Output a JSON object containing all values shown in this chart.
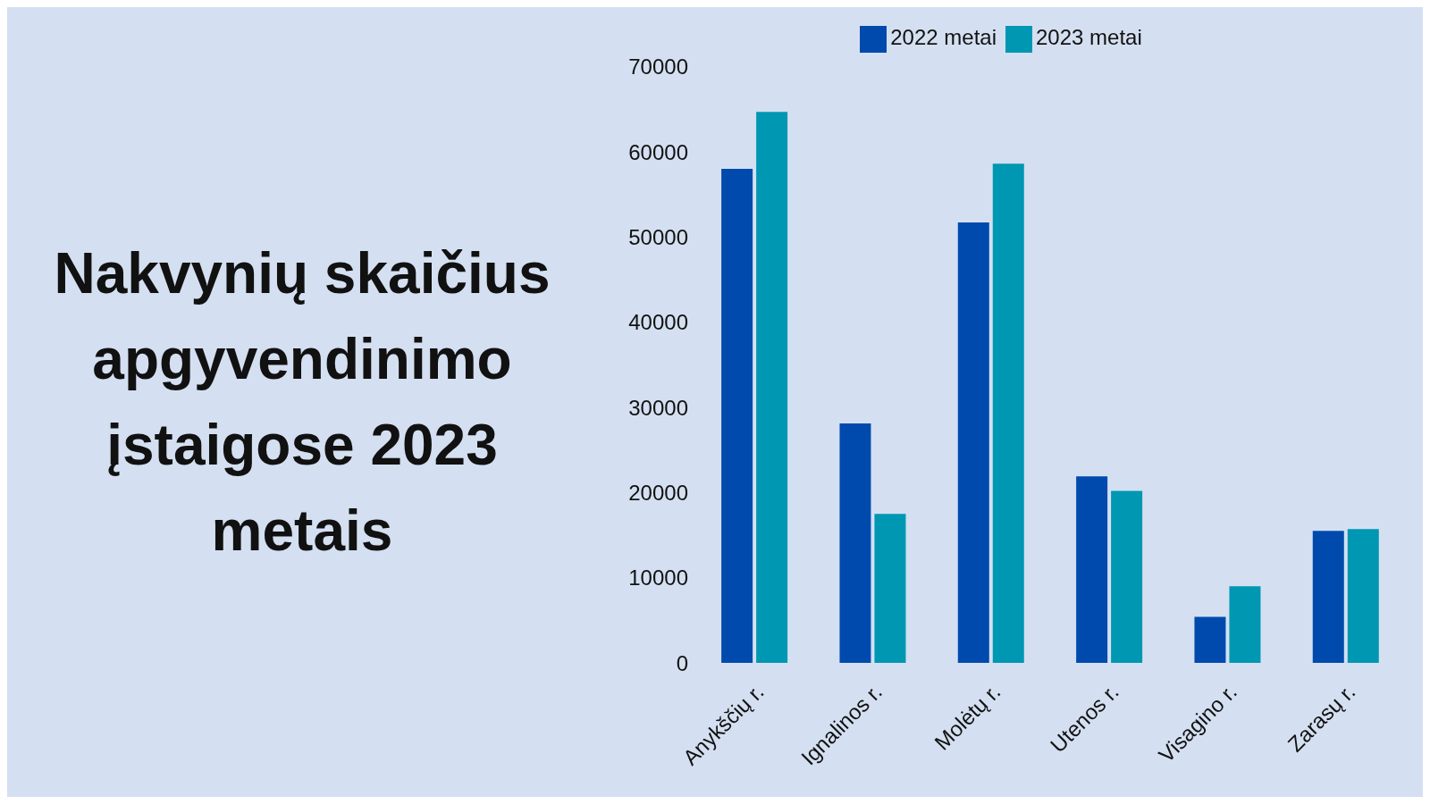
{
  "chart_data": {
    "type": "bar",
    "title": "Nakvynių skaičius apgyvendinimo įstaigose 2023 metais",
    "categories": [
      "Anykščių r.",
      "Ignalinos r.",
      "Molėtų r.",
      "Utenos r.",
      "Visagino r.",
      "Zarasų r."
    ],
    "series": [
      {
        "name": "2022 metai",
        "color": "#004aad",
        "values": [
          58000,
          28100,
          51700,
          21900,
          5400,
          15500
        ]
      },
      {
        "name": "2023 metai",
        "color": "#0097b2",
        "values": [
          64700,
          17500,
          58600,
          20200,
          9000,
          15700
        ]
      }
    ],
    "ylim": [
      0,
      70000
    ],
    "yticks": [
      0,
      10000,
      20000,
      30000,
      40000,
      50000,
      60000,
      70000
    ],
    "grid": false,
    "legend": "top"
  }
}
